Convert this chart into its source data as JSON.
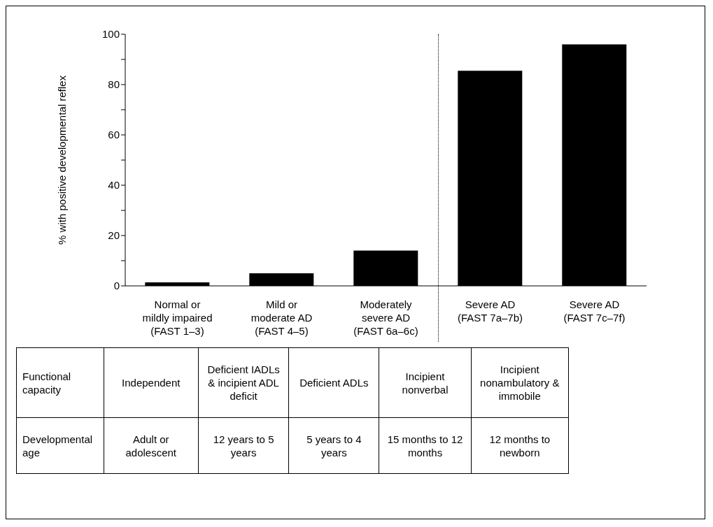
{
  "chart_data": {
    "type": "bar",
    "ylabel": "% with positive developmental reflex",
    "categories": [
      "Normal or mildly impaired (FAST 1–3)",
      "Mild or moderate AD (FAST 4–5)",
      "Moderately severe AD (FAST 6a–6c)",
      "Severe AD (FAST 7a–7b)",
      "Severe AD (FAST 7c–7f)"
    ],
    "values": [
      1.4,
      5,
      14,
      85.5,
      96
    ],
    "color": "#000000",
    "ylim": [
      0,
      100
    ],
    "yticks": [
      0,
      {
        "value": 10,
        "label": null
      },
      20,
      {
        "value": 30,
        "label": null
      },
      40,
      {
        "value": 50,
        "label": null
      },
      60,
      {
        "value": 70,
        "label": null
      },
      80,
      {
        "value": 90,
        "label": null
      },
      100
    ],
    "grid": false,
    "legend": false,
    "annotations": [
      "Functional capacity",
      "Independent",
      "Deficient IADLs & incipient ADL deficit",
      "Deficient ADLs",
      "Incipient nonverbal",
      "Incipient nonambulatory & immobile",
      "Developmental age",
      "Adult or adolescent",
      "12 years to 5 years",
      "5 years to 4 years",
      "15 months to 12 months",
      "12 months to newborn"
    ]
  }
}
